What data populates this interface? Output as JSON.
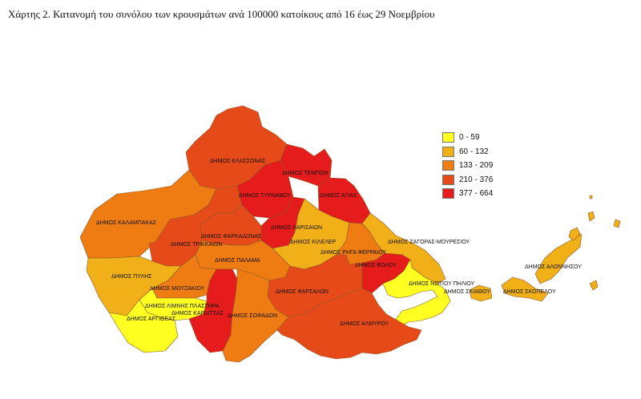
{
  "title": "Χάρτης 2. Κατανομή του συνόλου των κρουσμάτων ανά 100000 κατοίκους από 16 έως 29 Νοεμβρίου",
  "legend": [
    {
      "range": "0 - 59",
      "color": "#ffff22"
    },
    {
      "range": "60 - 132",
      "color": "#f2b018"
    },
    {
      "range": "133 - 209",
      "color": "#ee7c12"
    },
    {
      "range": "210 - 376",
      "color": "#e64a18"
    },
    {
      "range": "377 - 664",
      "color": "#e61b1b"
    }
  ],
  "municipalities": [
    {
      "id": "elassona",
      "name": "ΔΗΜΟΣ ΕΛΑΣΣΟΝΑΣ",
      "class": 3
    },
    {
      "id": "tempi",
      "name": "ΔΗΜΟΣ ΤΕΜΠΩΝ",
      "class": 4
    },
    {
      "id": "tyrnavos",
      "name": "ΔΗΜΟΣ ΤΥΡΝΑΒΟΥ",
      "class": 4
    },
    {
      "id": "agia",
      "name": "ΔΗΜΟΣ ΑΓΙΑΣ",
      "class": 4
    },
    {
      "id": "kalampaka",
      "name": "ΔΗΜΟΣ ΚΑΛΑΜΠΑΚΑΣ",
      "class": 2
    },
    {
      "id": "larissa",
      "name": "ΔΗΜΟΣ ΛΑΡΙΣΑΙΩΝ",
      "class": 4
    },
    {
      "id": "farkadona",
      "name": "ΔΗΜΟΣ ΦΑΡΚΑΔΟΝΑΣ",
      "class": 3
    },
    {
      "id": "trikala",
      "name": "ΔΗΜΟΣ ΤΡΙΚΚΑΙΩΝ",
      "class": 3
    },
    {
      "id": "kileler",
      "name": "ΔΗΜΟΣ ΚΙΛΕΛΕΡ",
      "class": 1
    },
    {
      "id": "zagora",
      "name": "ΔΗΜΟΣ ΖΑΓΟΡΑΣ-ΜΟΥΡΕΣΙΟΥ",
      "class": 1
    },
    {
      "id": "rigas",
      "name": "ΔΗΜΟΣ ΡΗΓΑ ΦΕΡΡΑΙΟΥ",
      "class": 2
    },
    {
      "id": "palamas",
      "name": "ΔΗΜΟΣ ΠΑΛΑΜΑ",
      "class": 2
    },
    {
      "id": "volos",
      "name": "ΔΗΜΟΣ ΒΟΛΟΥ",
      "class": 4
    },
    {
      "id": "alonissos",
      "name": "ΔΗΜΟΣ ΑΛΟΝΝΗΣΟΥ",
      "class": 1
    },
    {
      "id": "pyli",
      "name": "ΔΗΜΟΣ ΠΥΛΗΣ",
      "class": 1
    },
    {
      "id": "notiou_piliou",
      "name": "ΔΗΜΟΣ ΝΟΤΙΟΥ ΠΗΛΙΟΥ",
      "class": 0
    },
    {
      "id": "mouzaki",
      "name": "ΔΗΜΟΣ ΜΟΥΖΑΚΙΟΥ",
      "class": 2
    },
    {
      "id": "skiathos",
      "name": "ΔΗΜΟΣ ΣΚΙΑΘΟΥ",
      "class": 1
    },
    {
      "id": "skopelos",
      "name": "ΔΗΜΟΣ ΣΚΟΠΕΛΟΥ",
      "class": 1
    },
    {
      "id": "farsala",
      "name": "ΔΗΜΟΣ ΦΑΡΣΑΛΩΝ",
      "class": 3
    },
    {
      "id": "plastira",
      "name": "ΔΗΜΟΣ ΛΙΜΝΗΣ ΠΛΑΣΤΗΡΑ",
      "class": 0
    },
    {
      "id": "karditsa",
      "name": "ΔΗΜΟΣ ΚΑΡΔΙΤΣΑΣ",
      "class": 4
    },
    {
      "id": "sofades",
      "name": "ΔΗΜΟΣ ΣΟΦΑΔΩΝ",
      "class": 2
    },
    {
      "id": "argithea",
      "name": "ΔΗΜΟΣ ΑΡΓΙΘΕΑΣ",
      "class": 0
    },
    {
      "id": "almyros",
      "name": "ΔΗΜΟΣ ΑΛΜΥΡΟΥ",
      "class": 3
    }
  ]
}
